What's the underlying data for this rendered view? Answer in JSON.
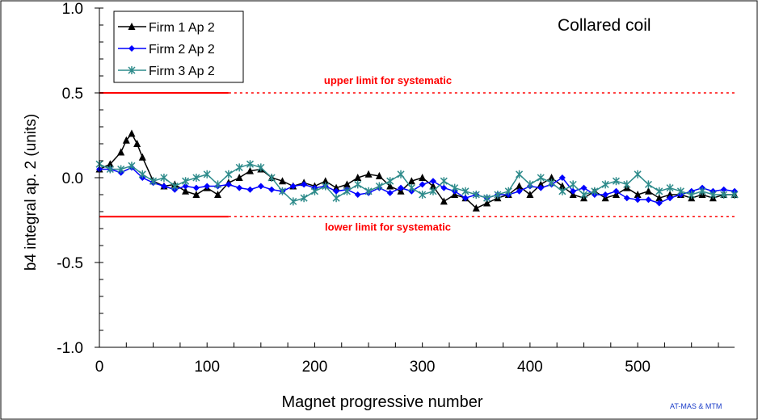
{
  "chart_data": {
    "type": "line",
    "title": "Collared coil",
    "xlabel": "Magnet progressive number",
    "ylabel": "b4 integral ap. 2 (units)",
    "xlim": [
      0,
      590
    ],
    "ylim": [
      -1.0,
      1.0
    ],
    "x_ticks": [
      "0",
      "100",
      "200",
      "300",
      "400",
      "500"
    ],
    "x_tick_values": [
      0,
      100,
      200,
      300,
      400,
      500
    ],
    "y_ticks": [
      "1.0",
      "0.5",
      "0.0",
      "-0.5",
      "-1.0"
    ],
    "y_tick_values": [
      1.0,
      0.5,
      0.0,
      -0.5,
      -1.0
    ],
    "grid": false,
    "legend_position": "top-left",
    "footer": "AT-MAS & MTM",
    "limits": [
      {
        "label": "upper limit for systematic",
        "value": 0.5,
        "solid_until": 120,
        "color": "#ff0000"
      },
      {
        "label": "lower limit for systematic",
        "value": -0.23,
        "solid_until": 120,
        "color": "#ff0000"
      }
    ],
    "series": [
      {
        "name": "Firm 1 Ap 2",
        "color": "#000000",
        "marker": "triangle",
        "x": [
          0,
          10,
          20,
          25,
          30,
          35,
          40,
          50,
          60,
          70,
          80,
          90,
          100,
          110,
          120,
          130,
          140,
          150,
          160,
          170,
          180,
          190,
          200,
          210,
          220,
          230,
          240,
          250,
          260,
          270,
          280,
          290,
          300,
          310,
          320,
          330,
          340,
          350,
          360,
          370,
          380,
          390,
          400,
          410,
          420,
          430,
          440,
          450,
          460,
          470,
          480,
          490,
          500,
          510,
          520,
          530,
          540,
          550,
          560,
          570,
          580,
          590
        ],
        "y": [
          0.05,
          0.08,
          0.15,
          0.22,
          0.26,
          0.2,
          0.12,
          -0.02,
          -0.05,
          -0.04,
          -0.08,
          -0.1,
          -0.06,
          -0.1,
          -0.03,
          0.0,
          0.04,
          0.05,
          0.0,
          -0.02,
          -0.05,
          -0.03,
          -0.05,
          -0.02,
          -0.06,
          -0.04,
          0.0,
          0.02,
          0.01,
          -0.05,
          -0.08,
          -0.02,
          0.0,
          -0.05,
          -0.14,
          -0.1,
          -0.12,
          -0.18,
          -0.15,
          -0.12,
          -0.1,
          -0.05,
          -0.1,
          -0.04,
          0.0,
          -0.05,
          -0.1,
          -0.12,
          -0.08,
          -0.12,
          -0.1,
          -0.06,
          -0.1,
          -0.08,
          -0.12,
          -0.1,
          -0.1,
          -0.12,
          -0.1,
          -0.12,
          -0.1,
          -0.1
        ]
      },
      {
        "name": "Firm 2 Ap 2",
        "color": "#0000ff",
        "marker": "diamond",
        "x": [
          0,
          10,
          20,
          30,
          40,
          50,
          60,
          70,
          80,
          90,
          100,
          110,
          120,
          130,
          140,
          150,
          160,
          170,
          180,
          190,
          200,
          210,
          220,
          230,
          240,
          250,
          260,
          270,
          280,
          290,
          300,
          310,
          320,
          330,
          340,
          350,
          360,
          370,
          380,
          390,
          400,
          410,
          420,
          430,
          440,
          450,
          460,
          470,
          480,
          490,
          500,
          510,
          520,
          530,
          540,
          550,
          560,
          570,
          580,
          590
        ],
        "y": [
          0.05,
          0.05,
          0.03,
          0.06,
          0.0,
          -0.03,
          -0.05,
          -0.07,
          -0.05,
          -0.06,
          -0.05,
          -0.05,
          -0.04,
          -0.06,
          -0.07,
          -0.05,
          -0.07,
          -0.08,
          -0.05,
          -0.04,
          -0.06,
          -0.05,
          -0.08,
          -0.07,
          -0.1,
          -0.09,
          -0.06,
          -0.09,
          -0.06,
          -0.08,
          -0.04,
          -0.02,
          -0.06,
          -0.08,
          -0.12,
          -0.1,
          -0.12,
          -0.1,
          -0.1,
          -0.08,
          -0.05,
          -0.06,
          -0.04,
          0.0,
          -0.08,
          -0.06,
          -0.1,
          -0.1,
          -0.08,
          -0.12,
          -0.13,
          -0.13,
          -0.15,
          -0.12,
          -0.1,
          -0.08,
          -0.06,
          -0.08,
          -0.07,
          -0.08
        ]
      },
      {
        "name": "Firm 3 Ap 2",
        "color": "#2e8b8b",
        "marker": "star",
        "x": [
          0,
          10,
          20,
          30,
          40,
          50,
          60,
          70,
          80,
          90,
          100,
          110,
          120,
          130,
          140,
          150,
          160,
          170,
          180,
          190,
          200,
          210,
          220,
          230,
          240,
          250,
          260,
          270,
          280,
          290,
          300,
          310,
          320,
          330,
          340,
          350,
          360,
          370,
          380,
          390,
          400,
          410,
          420,
          430,
          440,
          450,
          460,
          470,
          480,
          490,
          500,
          510,
          520,
          530,
          540,
          550,
          560,
          570,
          580,
          590
        ],
        "y": [
          0.08,
          0.05,
          0.05,
          0.07,
          0.02,
          -0.02,
          0.0,
          -0.05,
          -0.02,
          0.0,
          0.02,
          -0.04,
          0.02,
          0.06,
          0.08,
          0.06,
          0.0,
          -0.08,
          -0.14,
          -0.12,
          -0.08,
          -0.05,
          -0.12,
          -0.08,
          -0.04,
          -0.08,
          -0.05,
          -0.02,
          0.02,
          -0.06,
          -0.1,
          -0.08,
          -0.02,
          -0.06,
          -0.08,
          -0.1,
          -0.12,
          -0.1,
          -0.08,
          0.02,
          -0.04,
          0.0,
          -0.03,
          -0.08,
          -0.04,
          -0.1,
          -0.08,
          -0.04,
          -0.02,
          -0.04,
          0.02,
          -0.04,
          -0.08,
          -0.06,
          -0.08,
          -0.1,
          -0.08,
          -0.1,
          -0.1,
          -0.1
        ]
      }
    ]
  }
}
